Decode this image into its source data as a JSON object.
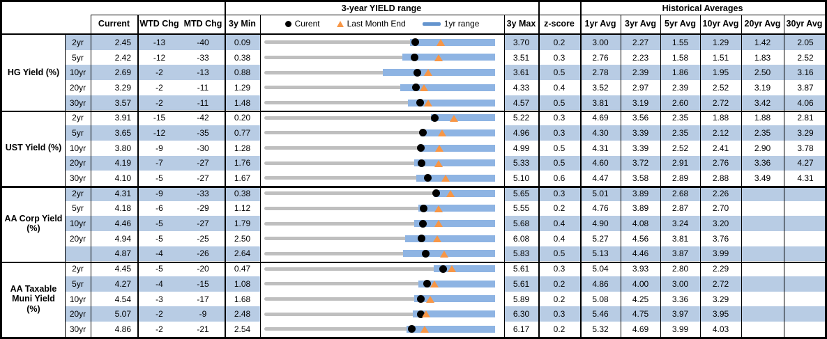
{
  "header": {
    "chart_group_title": "3-year YIELD range",
    "hist_group_title": "Historical Averages",
    "col_current": "Current",
    "col_wtd_chg": "WTD Chg",
    "col_mtd_chg": "MTD Chg",
    "col_3y_min": "3y Min",
    "col_3y_max": "3y Max",
    "col_zscore": "z-score",
    "avg_cols": [
      "1yr Avg",
      "3yr Avg",
      "5yr Avg",
      "10yr Avg",
      "20yr Avg",
      "30yr Avg"
    ],
    "legend": {
      "current_label": "Curent",
      "last_month_label": "Last Month End",
      "range_label": "1yr range"
    }
  },
  "colors": {
    "row_band": "#B8CCE4",
    "bar_1yr": "#8EB4E3",
    "track_3yr": "#BFBFBF",
    "marker_last_month": "#F79646",
    "marker_current": "#000000",
    "legend_bar": "#6494CE",
    "border": "#000000"
  },
  "chart_data": {
    "type": "table",
    "subtype": "bullet-range",
    "title": "3-year YIELD range",
    "description": "Per row: gray track spans 3y Min to 3y Max, blue bar is the 1yr range (low_1y to high_1y), black dot marks current yield, orange triangle marks last month end yield. low_1y/high_1y/last_month_end estimated from chart pixels.",
    "groups": [
      {
        "label": "HG Yield (%)",
        "lines": [
          "HG Yield (%)"
        ],
        "rows": [
          {
            "tenor": "2yr",
            "current": "2.45",
            "wtd_chg": "-13",
            "mtd_chg": "-40",
            "min_3y": "0.09",
            "max_3y": "3.70",
            "zscore": "0.2",
            "low_1y": 2.37,
            "high_1y": 3.7,
            "last_month_end": 2.85,
            "avgs": [
              "3.00",
              "2.27",
              "1.55",
              "1.29",
              "1.42",
              "2.05"
            ]
          },
          {
            "tenor": "5yr",
            "current": "2.42",
            "wtd_chg": "-12",
            "mtd_chg": "-33",
            "min_3y": "0.38",
            "max_3y": "3.51",
            "zscore": "0.3",
            "low_1y": 2.25,
            "high_1y": 3.51,
            "last_month_end": 2.75,
            "avgs": [
              "2.76",
              "2.23",
              "1.58",
              "1.51",
              "1.83",
              "2.52"
            ]
          },
          {
            "tenor": "10yr",
            "current": "2.69",
            "wtd_chg": "-2",
            "mtd_chg": "-13",
            "min_3y": "0.88",
            "max_3y": "3.61",
            "zscore": "0.5",
            "low_1y": 2.28,
            "high_1y": 3.61,
            "last_month_end": 2.82,
            "avgs": [
              "2.78",
              "2.39",
              "1.86",
              "1.95",
              "2.50",
              "3.16"
            ]
          },
          {
            "tenor": "20yr",
            "current": "3.29",
            "wtd_chg": "-2",
            "mtd_chg": "-11",
            "min_3y": "1.29",
            "max_3y": "4.33",
            "zscore": "0.4",
            "low_1y": 3.08,
            "high_1y": 4.33,
            "last_month_end": 3.4,
            "avgs": [
              "3.52",
              "2.97",
              "2.39",
              "2.52",
              "3.19",
              "3.87"
            ]
          },
          {
            "tenor": "30yr",
            "current": "3.57",
            "wtd_chg": "-2",
            "mtd_chg": "-11",
            "min_3y": "1.48",
            "max_3y": "4.57",
            "zscore": "0.5",
            "low_1y": 3.4,
            "high_1y": 4.57,
            "last_month_end": 3.68,
            "avgs": [
              "3.81",
              "3.19",
              "2.60",
              "2.72",
              "3.42",
              "4.06"
            ]
          }
        ]
      },
      {
        "label": "UST Yield (%)",
        "lines": [
          "UST Yield (%)"
        ],
        "rows": [
          {
            "tenor": "2yr",
            "current": "3.91",
            "wtd_chg": "-15",
            "mtd_chg": "-42",
            "min_3y": "0.20",
            "max_3y": "5.22",
            "zscore": "0.3",
            "low_1y": 3.83,
            "high_1y": 5.22,
            "last_month_end": 4.33,
            "avgs": [
              "4.69",
              "3.56",
              "2.35",
              "1.88",
              "1.88",
              "2.81"
            ]
          },
          {
            "tenor": "5yr",
            "current": "3.65",
            "wtd_chg": "-12",
            "mtd_chg": "-35",
            "min_3y": "0.77",
            "max_3y": "4.96",
            "zscore": "0.3",
            "low_1y": 3.61,
            "high_1y": 4.96,
            "last_month_end": 4.0,
            "avgs": [
              "4.30",
              "3.39",
              "2.35",
              "2.12",
              "2.35",
              "3.29"
            ]
          },
          {
            "tenor": "10yr",
            "current": "3.80",
            "wtd_chg": "-9",
            "mtd_chg": "-30",
            "min_3y": "1.28",
            "max_3y": "4.99",
            "zscore": "0.5",
            "low_1y": 3.78,
            "high_1y": 4.99,
            "last_month_end": 4.1,
            "avgs": [
              "4.31",
              "3.39",
              "2.52",
              "2.41",
              "2.90",
              "3.78"
            ]
          },
          {
            "tenor": "20yr",
            "current": "4.19",
            "wtd_chg": "-7",
            "mtd_chg": "-27",
            "min_3y": "1.76",
            "max_3y": "5.33",
            "zscore": "0.5",
            "low_1y": 4.08,
            "high_1y": 5.33,
            "last_month_end": 4.46,
            "avgs": [
              "4.60",
              "3.72",
              "2.91",
              "2.76",
              "3.36",
              "4.27"
            ]
          },
          {
            "tenor": "30yr",
            "current": "4.10",
            "wtd_chg": "-5",
            "mtd_chg": "-27",
            "min_3y": "1.67",
            "max_3y": "5.10",
            "zscore": "0.6",
            "low_1y": 3.93,
            "high_1y": 5.1,
            "last_month_end": 4.37,
            "avgs": [
              "4.47",
              "3.58",
              "2.89",
              "2.88",
              "3.49",
              "4.31"
            ]
          }
        ]
      },
      {
        "label": "AA Corp Yield (%)",
        "lines": [
          "AA Corp Yield",
          "(%)"
        ],
        "rows": [
          {
            "tenor": "2yr",
            "current": "4.31",
            "wtd_chg": "-9",
            "mtd_chg": "-33",
            "min_3y": "0.38",
            "max_3y": "5.65",
            "zscore": "0.3",
            "low_1y": 4.25,
            "high_1y": 5.65,
            "last_month_end": 4.64,
            "avgs": [
              "5.01",
              "3.89",
              "2.68",
              "2.26",
              "",
              ""
            ]
          },
          {
            "tenor": "5yr",
            "current": "4.18",
            "wtd_chg": "-6",
            "mtd_chg": "-29",
            "min_3y": "1.12",
            "max_3y": "5.55",
            "zscore": "0.2",
            "low_1y": 4.08,
            "high_1y": 5.55,
            "last_month_end": 4.47,
            "avgs": [
              "4.76",
              "3.89",
              "2.87",
              "2.70",
              "",
              ""
            ]
          },
          {
            "tenor": "10yr",
            "current": "4.46",
            "wtd_chg": "-5",
            "mtd_chg": "-27",
            "min_3y": "1.79",
            "max_3y": "5.68",
            "zscore": "0.4",
            "low_1y": 4.32,
            "high_1y": 5.68,
            "last_month_end": 4.73,
            "avgs": [
              "4.90",
              "4.08",
              "3.24",
              "3.20",
              "",
              ""
            ]
          },
          {
            "tenor": "20yr",
            "current": "4.94",
            "wtd_chg": "-5",
            "mtd_chg": "-25",
            "min_3y": "2.50",
            "max_3y": "6.08",
            "zscore": "0.4",
            "low_1y": 4.69,
            "high_1y": 6.08,
            "last_month_end": 5.19,
            "avgs": [
              "5.27",
              "4.56",
              "3.81",
              "3.76",
              "",
              ""
            ]
          },
          {
            "tenor": "",
            "current": "4.87",
            "wtd_chg": "-4",
            "mtd_chg": "-26",
            "min_3y": "2.64",
            "max_3y": "5.83",
            "zscore": "0.5",
            "low_1y": 4.56,
            "high_1y": 5.83,
            "last_month_end": 5.13,
            "avgs": [
              "5.13",
              "4.46",
              "3.87",
              "3.99",
              "",
              ""
            ]
          }
        ]
      },
      {
        "label": "AA Taxable Muni Yield (%)",
        "lines": [
          "AA Taxable",
          "Muni Yield",
          "(%)"
        ],
        "rows": [
          {
            "tenor": "2yr",
            "current": "4.45",
            "wtd_chg": "-5",
            "mtd_chg": "-20",
            "min_3y": "0.47",
            "max_3y": "5.61",
            "zscore": "0.3",
            "low_1y": 4.24,
            "high_1y": 5.61,
            "last_month_end": 4.65,
            "avgs": [
              "5.04",
              "3.93",
              "2.80",
              "2.29",
              "",
              ""
            ]
          },
          {
            "tenor": "5yr",
            "current": "4.27",
            "wtd_chg": "-4",
            "mtd_chg": "-15",
            "min_3y": "1.08",
            "max_3y": "5.61",
            "zscore": "0.2",
            "low_1y": 4.11,
            "high_1y": 5.61,
            "last_month_end": 4.42,
            "avgs": [
              "4.86",
              "4.00",
              "3.00",
              "2.72",
              "",
              ""
            ]
          },
          {
            "tenor": "10yr",
            "current": "4.54",
            "wtd_chg": "-3",
            "mtd_chg": "-17",
            "min_3y": "1.68",
            "max_3y": "5.89",
            "zscore": "0.2",
            "low_1y": 4.42,
            "high_1y": 5.89,
            "last_month_end": 4.71,
            "avgs": [
              "5.08",
              "4.25",
              "3.36",
              "3.29",
              "",
              ""
            ]
          },
          {
            "tenor": "20yr",
            "current": "5.07",
            "wtd_chg": "-2",
            "mtd_chg": "-9",
            "min_3y": "2.48",
            "max_3y": "6.30",
            "zscore": "0.3",
            "low_1y": 4.94,
            "high_1y": 6.3,
            "last_month_end": 5.16,
            "avgs": [
              "5.46",
              "4.75",
              "3.97",
              "3.95",
              "",
              ""
            ]
          },
          {
            "tenor": "30yr",
            "current": "4.86",
            "wtd_chg": "-2",
            "mtd_chg": "-21",
            "min_3y": "2.54",
            "max_3y": "6.17",
            "zscore": "0.2",
            "low_1y": 4.78,
            "high_1y": 6.17,
            "last_month_end": 5.07,
            "avgs": [
              "5.32",
              "4.69",
              "3.99",
              "4.03",
              "",
              ""
            ]
          }
        ]
      }
    ]
  }
}
